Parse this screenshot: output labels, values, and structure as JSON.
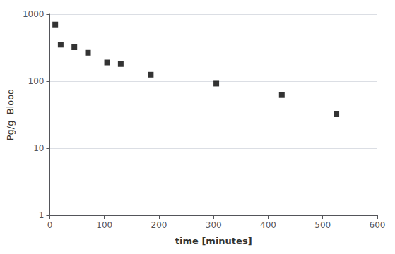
{
  "chart_data": {
    "type": "scatter",
    "x": [
      10,
      20,
      45,
      70,
      105,
      130,
      185,
      305,
      425,
      525
    ],
    "values": [
      700,
      350,
      320,
      265,
      190,
      180,
      125,
      92,
      62,
      32
    ],
    "marker": "square",
    "color": "#000000",
    "xlabel": "time [minutes]",
    "ylabel": "Pg/g  Blood",
    "xlim": [
      0,
      600
    ],
    "ylim": [
      1,
      1000
    ],
    "xticks": [
      0,
      100,
      200,
      300,
      400,
      500,
      600
    ],
    "yticks": [
      1,
      10,
      100,
      1000
    ],
    "log": "y",
    "grid": true
  }
}
